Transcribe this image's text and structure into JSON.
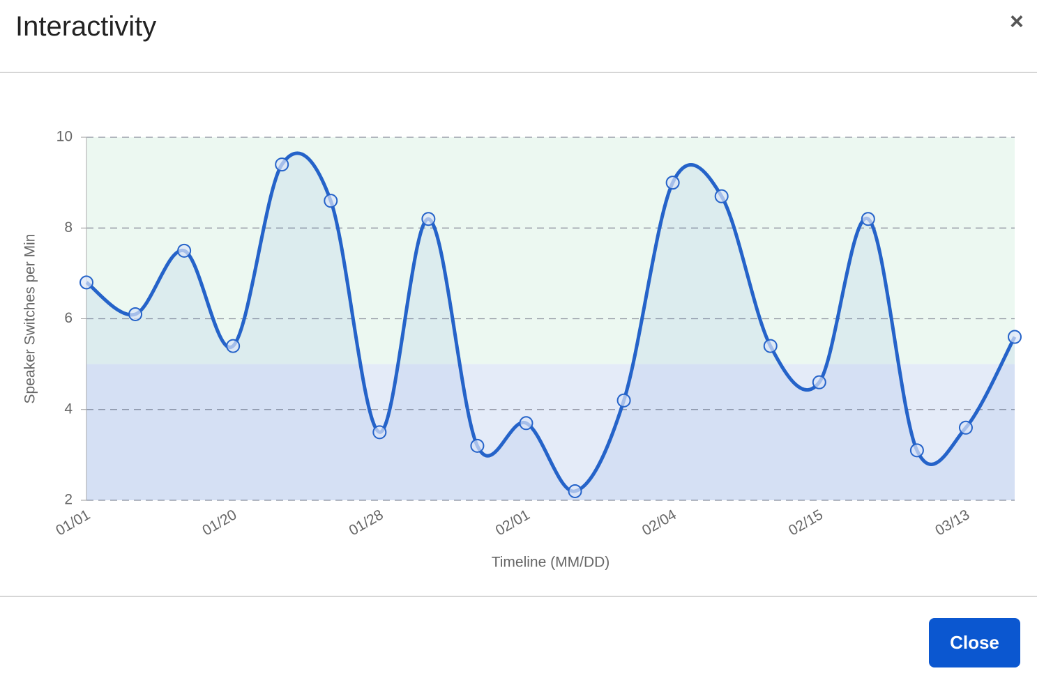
{
  "header": {
    "title": "Interactivity",
    "close_icon": "×"
  },
  "chart_data": {
    "type": "line",
    "x_label": "Timeline (MM/DD)",
    "y_label": "Speaker Switches per Min",
    "categories": [
      "01/01",
      null,
      null,
      "01/20",
      null,
      null,
      "01/28",
      null,
      null,
      "02/01",
      null,
      null,
      "02/04",
      null,
      null,
      "02/15",
      null,
      null,
      "03/13",
      null
    ],
    "series": [
      {
        "name": "Speaker Switches per Min",
        "color": "#2563c9",
        "values": [
          6.8,
          6.1,
          7.5,
          5.4,
          9.4,
          8.6,
          3.5,
          8.2,
          3.2,
          3.7,
          2.2,
          4.2,
          9.0,
          8.7,
          5.4,
          4.6,
          8.2,
          3.1,
          3.6,
          5.6
        ]
      }
    ],
    "ylim": [
      2,
      10
    ],
    "yticks": [
      2,
      4,
      6,
      8,
      10
    ],
    "grid": true,
    "bands": [
      {
        "from": 5,
        "to": 10,
        "color": "#ecf8f1"
      },
      {
        "from": 2,
        "to": 5,
        "color": "#e4ebf8"
      }
    ]
  },
  "footer": {
    "button": "Close"
  }
}
